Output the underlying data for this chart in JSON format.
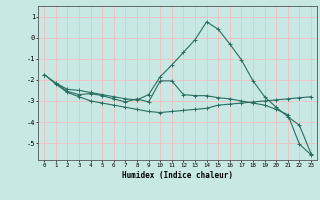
{
  "xlabel": "Humidex (Indice chaleur)",
  "background_color": "#c8e8e4",
  "grid_color": "#f0c0c0",
  "line_color": "#2a6e62",
  "xlim": [
    -0.5,
    23.5
  ],
  "ylim": [
    -5.8,
    1.5
  ],
  "yticks": [
    1,
    0,
    -1,
    -2,
    -3,
    -4,
    -5
  ],
  "xticks": [
    0,
    1,
    2,
    3,
    4,
    5,
    6,
    7,
    8,
    9,
    10,
    11,
    12,
    13,
    14,
    15,
    16,
    17,
    18,
    19,
    20,
    21,
    22,
    23
  ],
  "line1_x": [
    0,
    1,
    2,
    3,
    4,
    5,
    6,
    7,
    8,
    9,
    10,
    11,
    12,
    13,
    14,
    15,
    16,
    17,
    18,
    19,
    20,
    21,
    22,
    23
  ],
  "line1_y": [
    -1.75,
    -2.15,
    -2.45,
    -2.5,
    -2.6,
    -2.7,
    -2.8,
    -2.9,
    -2.95,
    -2.7,
    -1.85,
    -1.3,
    -0.7,
    -0.1,
    0.75,
    0.4,
    -0.3,
    -1.05,
    -2.05,
    -2.8,
    -3.3,
    -3.75,
    -4.15,
    -5.5
  ],
  "line2_x": [
    1,
    2,
    3,
    4,
    5,
    6,
    7,
    8,
    9,
    10,
    11,
    12,
    13,
    14,
    15,
    16,
    17,
    18,
    19,
    20,
    21,
    22,
    23
  ],
  "line2_y": [
    -2.15,
    -2.55,
    -2.7,
    -2.65,
    -2.75,
    -2.9,
    -3.05,
    -2.9,
    -3.05,
    -2.05,
    -2.05,
    -2.7,
    -2.75,
    -2.75,
    -2.85,
    -2.9,
    -3.0,
    -3.1,
    -3.2,
    -3.4,
    -3.65,
    -5.05,
    -5.55
  ],
  "line3_x": [
    0,
    1,
    2,
    3,
    4,
    5,
    6,
    7,
    8,
    9,
    10,
    11,
    12,
    13,
    14,
    15,
    16,
    17,
    18,
    19,
    20,
    21,
    22,
    23
  ],
  "line3_y": [
    -1.75,
    -2.2,
    -2.6,
    -2.8,
    -3.0,
    -3.1,
    -3.2,
    -3.3,
    -3.4,
    -3.5,
    -3.55,
    -3.5,
    -3.45,
    -3.4,
    -3.35,
    -3.2,
    -3.15,
    -3.1,
    -3.05,
    -3.0,
    -2.95,
    -2.9,
    -2.85,
    -2.8
  ]
}
